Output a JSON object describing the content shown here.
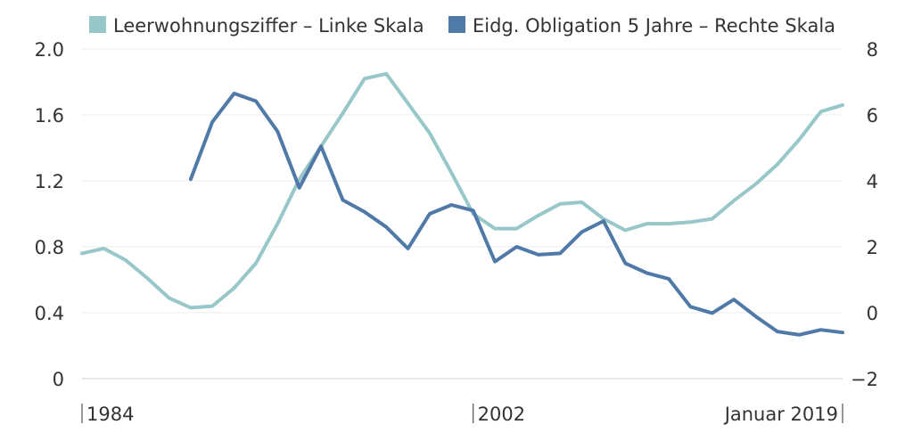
{
  "chart_data": {
    "type": "line",
    "title": "",
    "legend": [
      {
        "label": "Leerwohnungsziffer – Linke Skala",
        "color": "#97c7c9"
      },
      {
        "label": "Eidg. Obligation 5 Jahre – Rechte Skala",
        "color": "#4f79a6"
      }
    ],
    "x_axis": {
      "range": [
        1984,
        2019
      ],
      "tick_labels": [
        {
          "label": "1984",
          "value": 1984
        },
        {
          "label": "2002",
          "value": 2002
        },
        {
          "label": "Januar 2019",
          "value": 2019
        }
      ]
    },
    "y_left": {
      "range": [
        0,
        2.0
      ],
      "ticks": [
        {
          "label": "2.0",
          "value": 2.0
        },
        {
          "label": "1.6",
          "value": 1.6
        },
        {
          "label": "1.2",
          "value": 1.2
        },
        {
          "label": "0.8",
          "value": 0.8
        },
        {
          "label": "0.4",
          "value": 0.4
        },
        {
          "label": "0",
          "value": 0
        }
      ]
    },
    "y_right": {
      "range": [
        -2,
        8
      ],
      "ticks": [
        {
          "label": "8",
          "value": 8
        },
        {
          "label": "6",
          "value": 6
        },
        {
          "label": "4",
          "value": 4
        },
        {
          "label": "2",
          "value": 2
        },
        {
          "label": "0",
          "value": 0
        },
        {
          "label": "−2",
          "value": -2
        }
      ]
    },
    "series": [
      {
        "name": "Leerwohnungsziffer",
        "axis": "left",
        "color": "#97c7c9",
        "x": [
          1984,
          1985,
          1986,
          1987,
          1988,
          1989,
          1990,
          1991,
          1992,
          1993,
          1994,
          1995,
          1996,
          1997,
          1998,
          1999,
          2000,
          2001,
          2002,
          2003,
          2004,
          2005,
          2006,
          2007,
          2008,
          2009,
          2010,
          2011,
          2012,
          2013,
          2014,
          2015,
          2016,
          2017,
          2018,
          2019
        ],
        "values": [
          0.76,
          0.79,
          0.72,
          0.61,
          0.49,
          0.43,
          0.44,
          0.55,
          0.7,
          0.94,
          1.21,
          1.41,
          1.61,
          1.82,
          1.85,
          1.67,
          1.49,
          1.25,
          1.0,
          0.91,
          0.91,
          0.99,
          1.06,
          1.07,
          0.97,
          0.9,
          0.94,
          0.94,
          0.95,
          0.97,
          1.08,
          1.18,
          1.3,
          1.45,
          1.62,
          1.66
        ]
      },
      {
        "name": "Eidg. Obligation 5 Jahre",
        "axis": "right",
        "color": "#4f79a6",
        "x": [
          1989,
          1990,
          1991,
          1992,
          1993,
          1994,
          1995,
          1996,
          1997,
          1998,
          1999,
          2000,
          2001,
          2002,
          2003,
          2004,
          2005,
          2006,
          2007,
          2008,
          2009,
          2010,
          2011,
          2012,
          2013,
          2014,
          2015,
          2016,
          2017,
          2018,
          2019
        ],
        "values": [
          4.05,
          5.79,
          6.65,
          6.42,
          5.5,
          3.79,
          5.05,
          3.42,
          3.06,
          2.6,
          1.95,
          3.0,
          3.27,
          3.1,
          1.55,
          2.0,
          1.76,
          1.8,
          2.45,
          2.78,
          1.5,
          1.2,
          1.03,
          0.18,
          -0.01,
          0.4,
          -0.11,
          -0.57,
          -0.67,
          -0.52,
          -0.6
        ]
      }
    ]
  }
}
